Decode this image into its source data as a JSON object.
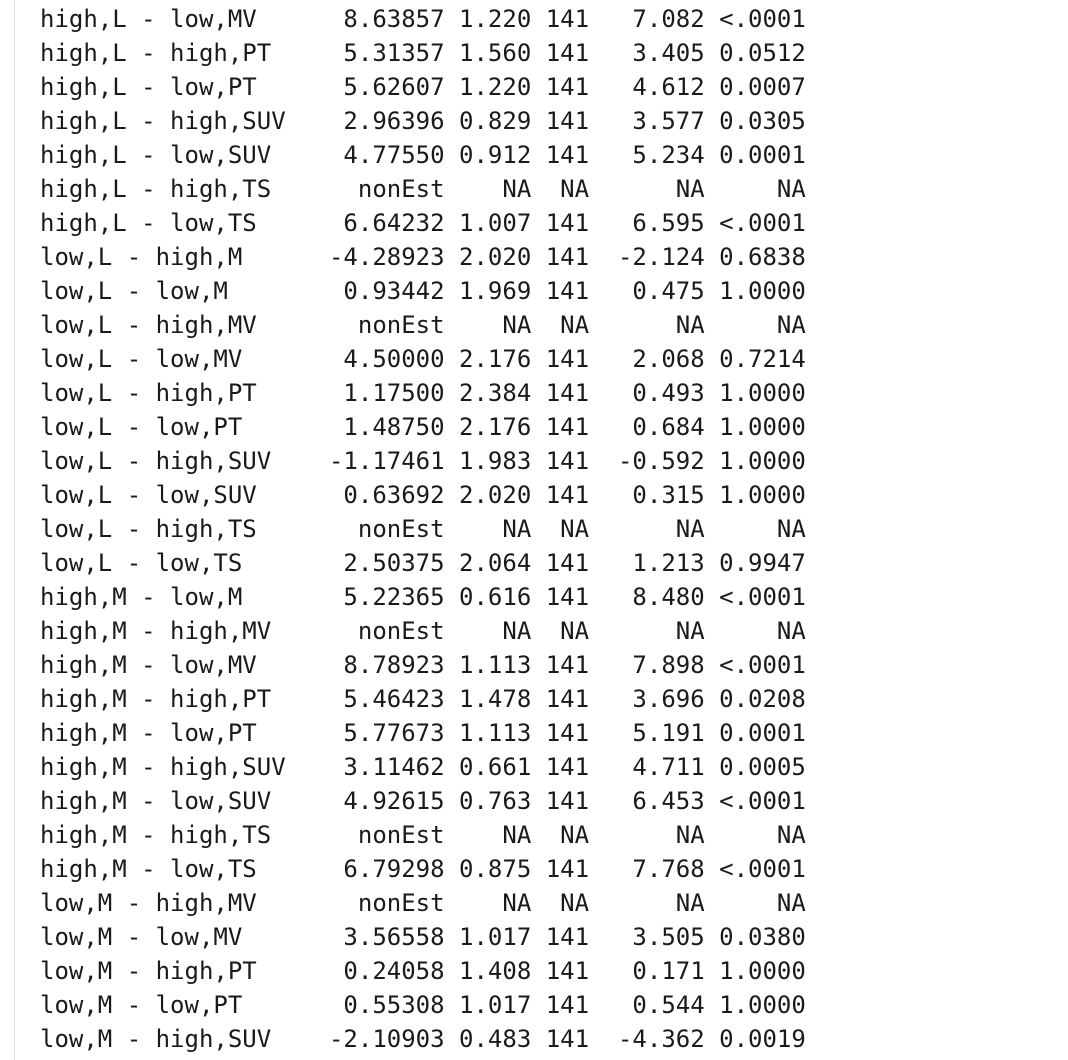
{
  "console": {
    "lines": [
      "high,L - low,MV      8.63857 1.220 141   7.082 <.0001",
      "high,L - high,PT     5.31357 1.560 141   3.405 0.0512",
      "high,L - low,PT      5.62607 1.220 141   4.612 0.0007",
      "high,L - high,SUV    2.96396 0.829 141   3.577 0.0305",
      "high,L - low,SUV     4.77550 0.912 141   5.234 0.0001",
      "high,L - high,TS      nonEst    NA  NA      NA     NA",
      "high,L - low,TS      6.64232 1.007 141   6.595 <.0001",
      "low,L - high,M      -4.28923 2.020 141  -2.124 0.6838",
      "low,L - low,M        0.93442 1.969 141   0.475 1.0000",
      "low,L - high,MV       nonEst    NA  NA      NA     NA",
      "low,L - low,MV       4.50000 2.176 141   2.068 0.7214",
      "low,L - high,PT      1.17500 2.384 141   0.493 1.0000",
      "low,L - low,PT       1.48750 2.176 141   0.684 1.0000",
      "low,L - high,SUV    -1.17461 1.983 141  -0.592 1.0000",
      "low,L - low,SUV      0.63692 2.020 141   0.315 1.0000",
      "low,L - high,TS       nonEst    NA  NA      NA     NA",
      "low,L - low,TS       2.50375 2.064 141   1.213 0.9947",
      "high,M - low,M       5.22365 0.616 141   8.480 <.0001",
      "high,M - high,MV      nonEst    NA  NA      NA     NA",
      "high,M - low,MV      8.78923 1.113 141   7.898 <.0001",
      "high,M - high,PT     5.46423 1.478 141   3.696 0.0208",
      "high,M - low,PT      5.77673 1.113 141   5.191 0.0001",
      "high,M - high,SUV    3.11462 0.661 141   4.711 0.0005",
      "high,M - low,SUV     4.92615 0.763 141   6.453 <.0001",
      "high,M - high,TS      nonEst    NA  NA      NA     NA",
      "high,M - low,TS      6.79298 0.875 141   7.768 <.0001",
      "low,M - high,MV       nonEst    NA  NA      NA     NA",
      "low,M - low,MV       3.56558 1.017 141   3.505 0.0380",
      "low,M - high,PT      0.24058 1.408 141   0.171 1.0000",
      "low,M - low,PT       0.55308 1.017 141   0.544 1.0000",
      "low,M - high,SUV    -2.10903 0.483 141  -4.362 0.0019"
    ]
  }
}
